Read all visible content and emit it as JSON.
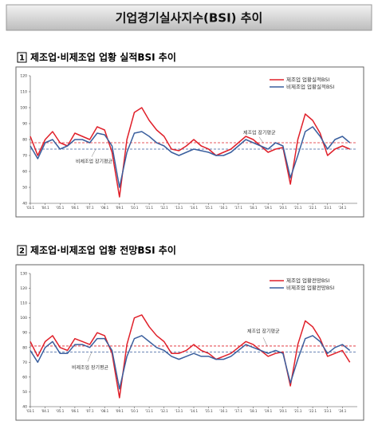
{
  "header": {
    "title": "기업경기실사지수(BSI) 추이"
  },
  "sections": [
    {
      "number": "1",
      "heading": "제조업·비제조업 업황 실적BSI 추이"
    },
    {
      "number": "2",
      "heading": "제조업·비제조업 업황 전망BSI 추이"
    }
  ],
  "chart_data": [
    {
      "type": "line",
      "x": [
        2003,
        2003.5,
        2004,
        2004.5,
        2005,
        2005.5,
        2006,
        2006.5,
        2007,
        2007.5,
        2008,
        2008.5,
        2009,
        2009.5,
        2010,
        2010.5,
        2011,
        2011.5,
        2012,
        2012.5,
        2013,
        2013.5,
        2014,
        2014.5,
        2015,
        2015.5,
        2016,
        2016.5,
        2017,
        2017.5,
        2018,
        2018.5,
        2019,
        2019.5,
        2020,
        2020.5,
        2021,
        2021.5,
        2022,
        2022.5,
        2023,
        2023.5,
        2024,
        2024.5
      ],
      "series": [
        {
          "name": "제조업 업황실적BSI",
          "color": "#e0202a",
          "values": [
            82,
            70,
            80,
            85,
            78,
            76,
            84,
            82,
            80,
            88,
            86,
            72,
            44,
            80,
            97,
            100,
            92,
            86,
            82,
            74,
            73,
            76,
            80,
            76,
            74,
            70,
            72,
            74,
            78,
            82,
            80,
            76,
            72,
            74,
            75,
            52,
            80,
            96,
            92,
            84,
            70,
            74,
            76,
            74
          ]
        },
        {
          "name": "비제조업 업황실적BSI",
          "color": "#3a5f9e",
          "values": [
            76,
            68,
            78,
            80,
            74,
            76,
            80,
            80,
            78,
            84,
            83,
            76,
            50,
            72,
            84,
            85,
            82,
            78,
            76,
            72,
            70,
            72,
            74,
            73,
            72,
            70,
            70,
            72,
            76,
            80,
            78,
            76,
            74,
            78,
            76,
            56,
            70,
            85,
            88,
            82,
            74,
            80,
            82,
            78
          ]
        }
      ],
      "reference_lines": [
        {
          "label": "제조업 장기평균",
          "value": 78,
          "color": "#e0202a"
        },
        {
          "label": "비제조업 장기평균",
          "value": 74,
          "color": "#3a5f9e"
        }
      ],
      "xlim": [
        2003,
        2025
      ],
      "xticks": [
        {
          "value": 2003,
          "label": "'03.1"
        },
        {
          "value": 2004,
          "label": "'04.1"
        },
        {
          "value": 2005,
          "label": "'05.1"
        },
        {
          "value": 2006,
          "label": "'06.1"
        },
        {
          "value": 2007,
          "label": "'07.1"
        },
        {
          "value": 2008,
          "label": "'08.1"
        },
        {
          "value": 2009,
          "label": "'09.1"
        },
        {
          "value": 2010,
          "label": "'10.1"
        },
        {
          "value": 2011,
          "label": "'11.1"
        },
        {
          "value": 2012,
          "label": "'12.1"
        },
        {
          "value": 2013,
          "label": "'13.1"
        },
        {
          "value": 2014,
          "label": "'14.1"
        },
        {
          "value": 2015,
          "label": "'15.1"
        },
        {
          "value": 2016,
          "label": "'16.1"
        },
        {
          "value": 2017,
          "label": "'17.1"
        },
        {
          "value": 2018,
          "label": "'18.1"
        },
        {
          "value": 2019,
          "label": "'19.1"
        },
        {
          "value": 2020,
          "label": "'20.1"
        },
        {
          "value": 2021,
          "label": "'21.1"
        },
        {
          "value": 2022,
          "label": "'22.1"
        },
        {
          "value": 2023,
          "label": "'23.1"
        },
        {
          "value": 2024,
          "label": "'24.1"
        }
      ],
      "ylim": [
        40,
        120
      ],
      "yticks": [
        40,
        50,
        60,
        70,
        80,
        90,
        100,
        110,
        120
      ]
    },
    {
      "type": "line",
      "x": [
        2003,
        2003.5,
        2004,
        2004.5,
        2005,
        2005.5,
        2006,
        2006.5,
        2007,
        2007.5,
        2008,
        2008.5,
        2009,
        2009.5,
        2010,
        2010.5,
        2011,
        2011.5,
        2012,
        2012.5,
        2013,
        2013.5,
        2014,
        2014.5,
        2015,
        2015.5,
        2016,
        2016.5,
        2017,
        2017.5,
        2018,
        2018.5,
        2019,
        2019.5,
        2020,
        2020.5,
        2021,
        2021.5,
        2022,
        2022.5,
        2023,
        2023.5,
        2024,
        2024.5
      ],
      "series": [
        {
          "name": "제조업 업황전망BSI",
          "color": "#e0202a",
          "values": [
            84,
            74,
            84,
            88,
            80,
            78,
            86,
            84,
            82,
            90,
            88,
            76,
            46,
            82,
            100,
            102,
            94,
            88,
            84,
            76,
            76,
            78,
            82,
            78,
            76,
            72,
            74,
            76,
            80,
            84,
            82,
            78,
            74,
            76,
            77,
            54,
            82,
            98,
            94,
            86,
            74,
            76,
            78,
            70
          ]
        },
        {
          "name": "비제조업 업황전망BSI",
          "color": "#3a5f9e",
          "values": [
            78,
            70,
            80,
            84,
            76,
            76,
            82,
            82,
            80,
            86,
            86,
            78,
            52,
            74,
            86,
            88,
            84,
            80,
            78,
            74,
            72,
            74,
            76,
            74,
            74,
            72,
            72,
            74,
            78,
            82,
            80,
            78,
            76,
            78,
            76,
            56,
            72,
            86,
            88,
            84,
            76,
            80,
            82,
            78
          ]
        }
      ],
      "reference_lines": [
        {
          "label": "제조업 장기평균",
          "value": 81,
          "color": "#e0202a"
        },
        {
          "label": "비제조업 장기평균",
          "value": 77,
          "color": "#3a5f9e"
        }
      ],
      "xlim": [
        2003,
        2025
      ],
      "xticks": [
        {
          "value": 2003,
          "label": "'03.1"
        },
        {
          "value": 2004,
          "label": "'04.1"
        },
        {
          "value": 2005,
          "label": "'05.1"
        },
        {
          "value": 2006,
          "label": "'06.1"
        },
        {
          "value": 2007,
          "label": "'07.1"
        },
        {
          "value": 2008,
          "label": "'08.1"
        },
        {
          "value": 2009,
          "label": "'09.1"
        },
        {
          "value": 2010,
          "label": "'10.1"
        },
        {
          "value": 2011,
          "label": "'11.1"
        },
        {
          "value": 2012,
          "label": "'12.1"
        },
        {
          "value": 2013,
          "label": "'13.1"
        },
        {
          "value": 2014,
          "label": "'14.1"
        },
        {
          "value": 2015,
          "label": "'15.1"
        },
        {
          "value": 2016,
          "label": "'16.1"
        },
        {
          "value": 2017,
          "label": "'17.1"
        },
        {
          "value": 2018,
          "label": "'18.1"
        },
        {
          "value": 2019,
          "label": "'19.1"
        },
        {
          "value": 2020,
          "label": "'20.1"
        },
        {
          "value": 2021,
          "label": "'21.1"
        },
        {
          "value": 2022,
          "label": "'22.1"
        },
        {
          "value": 2023,
          "label": "'23.1"
        },
        {
          "value": 2024,
          "label": "'24.1"
        }
      ],
      "ylim": [
        40,
        130
      ],
      "yticks": [
        40,
        50,
        60,
        70,
        80,
        90,
        100,
        110,
        120,
        130
      ]
    }
  ]
}
